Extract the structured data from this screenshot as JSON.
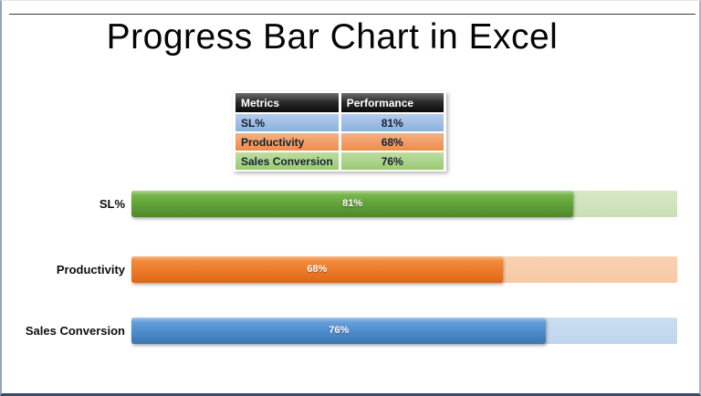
{
  "title": "Progress Bar Chart in Excel",
  "table": {
    "headers": [
      "Metrics",
      "Performance"
    ],
    "rows": [
      {
        "metric": "SL%",
        "performance": "81%"
      },
      {
        "metric": "Productivity",
        "performance": "68%"
      },
      {
        "metric": "Sales Conversion",
        "performance": "76%"
      }
    ]
  },
  "chart_data": {
    "type": "bar",
    "orientation": "horizontal",
    "title": "Progress Bar Chart in Excel",
    "categories": [
      "SL%",
      "Productivity",
      "Sales Conversion"
    ],
    "values": [
      81,
      68,
      76
    ],
    "value_labels": [
      "81%",
      "68%",
      "76%"
    ],
    "xlim": [
      0,
      100
    ],
    "grid": false,
    "legend": false,
    "colors": {
      "sl_fill": "#61a138",
      "sl_track": "#cfe2bc",
      "productivity_fill": "#ee7e2c",
      "productivity_track": "#f8cdab",
      "sales_conversion_fill": "#4f90d0",
      "sales_conversion_track": "#c3d9ee",
      "table_header_bg": "#1a1a1a",
      "table_row_blue": "#9cbbe4",
      "table_row_orange": "#f19e66",
      "table_row_green": "#abd389",
      "title_color": "#050505"
    }
  }
}
